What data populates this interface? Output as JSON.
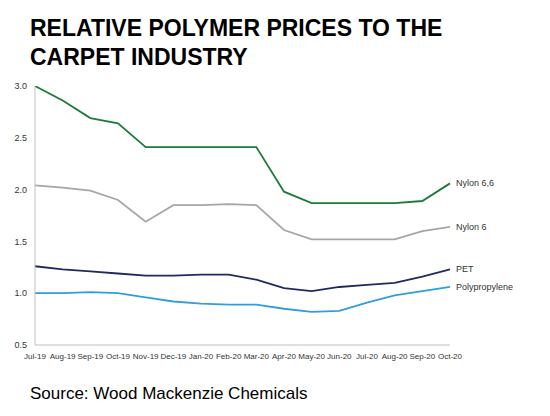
{
  "chart_data": {
    "type": "line",
    "title": "RELATIVE POLYMER PRICES TO THE CARPET INDUSTRY",
    "subtitle": "Source: Wood Mackenzie Chemicals",
    "categories": [
      "Jul-19",
      "Aug-19",
      "Sep-19",
      "Oct-19",
      "Nov-19",
      "Dec-19",
      "Jan-20",
      "Feb-20",
      "Mar-20",
      "Apr-20",
      "May-20",
      "Jun-20",
      "Jul-20",
      "Aug-20",
      "Sep-20",
      "Oct-20"
    ],
    "series": [
      {
        "name": "Nylon 6,6",
        "color": "#1e7a3a",
        "values": [
          3.0,
          2.86,
          2.69,
          2.64,
          2.41,
          2.41,
          2.41,
          2.41,
          2.41,
          1.98,
          1.87,
          1.87,
          1.87,
          1.87,
          1.89,
          2.06
        ]
      },
      {
        "name": "Nylon 6",
        "color": "#a6a6a6",
        "values": [
          2.04,
          2.02,
          1.99,
          1.9,
          1.69,
          1.85,
          1.85,
          1.86,
          1.85,
          1.61,
          1.52,
          1.52,
          1.52,
          1.52,
          1.6,
          1.64
        ]
      },
      {
        "name": "PET",
        "color": "#1f2a5e",
        "values": [
          1.26,
          1.23,
          1.21,
          1.19,
          1.17,
          1.17,
          1.18,
          1.18,
          1.13,
          1.05,
          1.02,
          1.06,
          1.08,
          1.1,
          1.16,
          1.23
        ]
      },
      {
        "name": "Polypropylene",
        "color": "#2e9fd8",
        "values": [
          1.0,
          1.0,
          1.01,
          1.0,
          0.96,
          0.92,
          0.9,
          0.89,
          0.89,
          0.85,
          0.82,
          0.83,
          0.91,
          0.98,
          1.02,
          1.06
        ]
      }
    ],
    "ylim": [
      0.5,
      3.0
    ],
    "yticks": [
      0.5,
      {
        "value": 1,
        "label": "1.0"
      },
      1.5,
      {
        "value": 2,
        "label": "2.0"
      },
      2.5,
      {
        "value": 3,
        "label": "3.0"
      }
    ],
    "grid": false
  }
}
